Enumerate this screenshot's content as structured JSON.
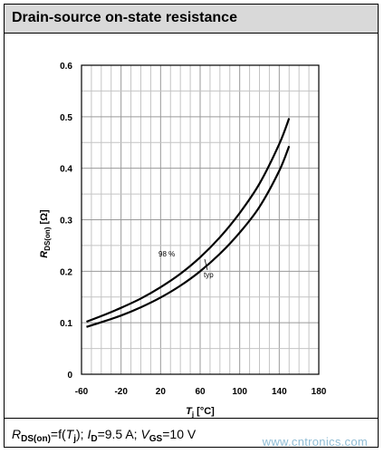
{
  "header": {
    "title": "Drain-source on-state resistance"
  },
  "chart_data": {
    "type": "line",
    "xlabel_symbol": "T",
    "xlabel_sub": "j",
    "xlabel_unit": " [°C]",
    "ylabel_symbol": "R",
    "ylabel_sub": "DS(on)",
    "ylabel_unit": " [Ω]",
    "xlim": [
      -60,
      180
    ],
    "ylim": [
      0,
      0.6
    ],
    "x_ticks": [
      -60,
      -20,
      20,
      60,
      100,
      140,
      180
    ],
    "y_ticks": [
      0,
      0.1,
      0.2,
      0.3,
      0.4,
      0.5,
      0.6
    ],
    "grid": true,
    "series": [
      {
        "name": "98 %",
        "x": [
          -55,
          -40,
          -20,
          0,
          20,
          40,
          60,
          80,
          100,
          120,
          140,
          150
        ],
        "y": [
          0.102,
          0.113,
          0.129,
          0.147,
          0.169,
          0.195,
          0.227,
          0.266,
          0.313,
          0.37,
          0.447,
          0.497
        ]
      },
      {
        "name": "typ",
        "x": [
          -55,
          -40,
          -20,
          0,
          20,
          40,
          60,
          80,
          100,
          120,
          140,
          150
        ],
        "y": [
          0.092,
          0.101,
          0.114,
          0.13,
          0.149,
          0.172,
          0.2,
          0.234,
          0.275,
          0.325,
          0.395,
          0.443
        ]
      }
    ]
  },
  "footer": {
    "r_symbol": "R",
    "r_sub": "DS(on)",
    "eq1": "=f(",
    "t_symbol": "T",
    "t_sub": "j",
    "eq2": "); ",
    "i_symbol": "I",
    "i_sub": "D",
    "eq3": "=9.5 A; ",
    "v_symbol": "V",
    "v_sub": "GS",
    "eq4": "=10 V"
  },
  "watermark": "www.cntronics.com"
}
